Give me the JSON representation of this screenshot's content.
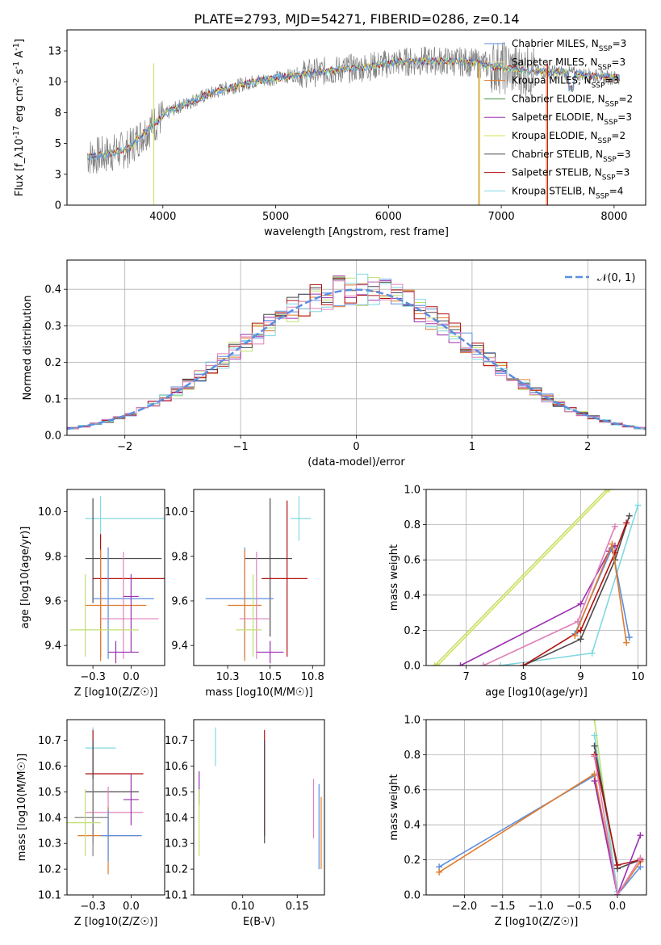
{
  "figure": {
    "title": "PLATE=2793, MJD=54271, FIBERID=0286, z=0.14"
  },
  "colors": {
    "ChabrierMILES": "#5b8ee0",
    "SalpeterMILES": "#e8d8a0",
    "KroupaMILES": "#e07b2a",
    "ChabrierELODIE": "#3f8f3f",
    "SalpeterELODIE": "#9b30b0",
    "KroupaELODIE": "#d4e056",
    "ChabrierSTELIB": "#4a4a4a",
    "SalpeterSTELIB": "#b01010",
    "KroupaSTELIB": "#80d8e0",
    "pink": "#e080b8",
    "lime": "#c0e070",
    "gray": "#808080"
  },
  "chart_data": [
    {
      "id": "spectrum",
      "type": "line",
      "xlabel": "wavelength [Angstrom, rest frame]",
      "ylabel": "Flux [f_λ10^-17 erg cm^-2 s^-1 A^-1]",
      "xlim": [
        3150,
        8280
      ],
      "ylim": [
        0,
        14.2
      ],
      "xticks": [
        4000,
        5000,
        6000,
        7000,
        8000
      ],
      "yticks": [
        0.0,
        2.5,
        5.0,
        7.5,
        10.0,
        12.5
      ],
      "legend": [
        {
          "label": "Chabrier MILES, N_SSP=3",
          "color": "ChabrierMILES"
        },
        {
          "label": "Salpeter MILES, N_SSP=3",
          "color": "SalpeterMILES"
        },
        {
          "label": "Kroupa MILES, N_SSP=3",
          "color": "KroupaMILES"
        },
        {
          "label": "Chabrier ELODIE, N_SSP=2",
          "color": "ChabrierELODIE"
        },
        {
          "label": "Salpeter ELODIE, N_SSP=3",
          "color": "SalpeterELODIE"
        },
        {
          "label": "Kroupa ELODIE, N_SSP=2",
          "color": "KroupaELODIE"
        },
        {
          "label": "Chabrier STELIB, N_SSP=3",
          "color": "ChabrierSTELIB"
        },
        {
          "label": "Salpeter STELIB, N_SSP=3",
          "color": "SalpeterSTELIB"
        },
        {
          "label": "Kroupa STELIB, N_SSP=4",
          "color": "KroupaSTELIB"
        }
      ],
      "continuum": [
        [
          3330,
          3.9
        ],
        [
          3500,
          4.1
        ],
        [
          3700,
          4.6
        ],
        [
          3800,
          5.6
        ],
        [
          3900,
          6.4
        ],
        [
          4000,
          7.2
        ],
        [
          4100,
          7.8
        ],
        [
          4300,
          8.6
        ],
        [
          4500,
          9.3
        ],
        [
          4800,
          10.0
        ],
        [
          5000,
          10.3
        ],
        [
          5200,
          10.6
        ],
        [
          5500,
          10.9
        ],
        [
          5800,
          11.2
        ],
        [
          6100,
          11.6
        ],
        [
          6400,
          11.7
        ],
        [
          6700,
          11.6
        ],
        [
          6900,
          11.3
        ],
        [
          7100,
          11.0
        ],
        [
          7300,
          10.8
        ],
        [
          7500,
          10.8
        ],
        [
          7700,
          10.6
        ],
        [
          7900,
          10.4
        ],
        [
          8050,
          10.3
        ]
      ]
    },
    {
      "id": "residuals",
      "type": "line",
      "xlabel": "(data-model)/error",
      "ylabel": "Normed distribution",
      "xlim": [
        -2.5,
        2.5
      ],
      "ylim": [
        0,
        0.48
      ],
      "xticks": [
        -2,
        -1,
        0,
        1,
        2
      ],
      "yticks": [
        0.0,
        0.1,
        0.2,
        0.3,
        0.4
      ],
      "legend": [
        {
          "label": "𝒩(0, 1)",
          "color": "ChabrierMILES"
        }
      ]
    },
    {
      "id": "age-vs-Z",
      "type": "scatter",
      "xlabel": "Z [log10(Z/Z☉)]",
      "ylabel": "age  [log10(age/yr)]",
      "xlim": [
        -0.42,
        0.22
      ],
      "ylim": [
        9.31,
        10.1
      ],
      "xticks": [
        -0.25,
        0.0
      ],
      "yticks": [
        9.4,
        9.6,
        9.8,
        10.0
      ],
      "points": [
        {
          "x": -0.2,
          "y": 9.97,
          "xerr": [
            0.1,
            0.5
          ],
          "yerr": [
            0.1,
            0.1
          ],
          "color": "KroupaSTELIB"
        },
        {
          "x": -0.25,
          "y": 9.79,
          "xerr": [
            0.05,
            0.45
          ],
          "yerr": [
            0.2,
            0.27
          ],
          "color": "ChabrierSTELIB"
        },
        {
          "x": -0.2,
          "y": 9.7,
          "xerr": [
            0.05,
            0.45
          ],
          "yerr": [
            0.35,
            0.2
          ],
          "color": "SalpeterSTELIB"
        },
        {
          "x": -0.15,
          "y": 9.61,
          "xerr": [
            0.1,
            0.3
          ],
          "yerr": [
            0.27,
            0.23
          ],
          "color": "ChabrierMILES"
        },
        {
          "x": -0.2,
          "y": 9.58,
          "xerr": [
            0.1,
            0.3
          ],
          "yerr": [
            0.25,
            0.25
          ],
          "color": "KroupaMILES"
        },
        {
          "x": -0.05,
          "y": 9.52,
          "xerr": [
            0.15,
            0.23
          ],
          "yerr": [
            0.18,
            0.3
          ],
          "color": "pink"
        },
        {
          "x": 0.0,
          "y": 9.62,
          "xerr": [
            0.05,
            0.05
          ],
          "yerr": [
            0.25,
            0.1
          ],
          "color": "SalpeterELODIE"
        },
        {
          "x": -0.1,
          "y": 9.37,
          "xerr": [
            0.05,
            0.15
          ],
          "yerr": [
            0.05,
            0.05
          ],
          "color": "SalpeterELODIE"
        },
        {
          "x": -0.3,
          "y": 9.47,
          "xerr": [
            0.1,
            0.35
          ],
          "yerr": [
            0.12,
            0.25
          ],
          "color": "lime"
        }
      ]
    },
    {
      "id": "age-vs-mass",
      "type": "scatter",
      "xlabel": "mass [log10(M/M☉)]",
      "ylabel": "",
      "xlim": [
        10.05,
        10.82
      ],
      "ylim": [
        9.31,
        10.1
      ],
      "xticks": [
        10.25,
        10.5,
        10.75
      ],
      "yticks": [
        9.4,
        9.6,
        9.8,
        10.0
      ],
      "points": [
        {
          "x": 10.67,
          "y": 9.97,
          "xerr": [
            0.05,
            0.07
          ],
          "yerr": [
            0.1,
            0.1
          ],
          "color": "KroupaSTELIB"
        },
        {
          "x": 10.5,
          "y": 9.79,
          "xerr": [
            0.15,
            0.13
          ],
          "yerr": [
            0.35,
            0.27
          ],
          "color": "ChabrierSTELIB"
        },
        {
          "x": 10.6,
          "y": 9.7,
          "xerr": [
            0.15,
            0.12
          ],
          "yerr": [
            0.35,
            0.35
          ],
          "color": "SalpeterSTELIB"
        },
        {
          "x": 10.35,
          "y": 9.61,
          "xerr": [
            0.23,
            0.17
          ],
          "yerr": [
            0.27,
            0.23
          ],
          "color": "ChabrierMILES"
        },
        {
          "x": 10.35,
          "y": 9.58,
          "xerr": [
            0.1,
            0.1
          ],
          "yerr": [
            0.25,
            0.25
          ],
          "color": "KroupaMILES"
        },
        {
          "x": 10.42,
          "y": 9.52,
          "xerr": [
            0.1,
            0.08
          ],
          "yerr": [
            0.18,
            0.3
          ],
          "color": "pink"
        },
        {
          "x": 10.5,
          "y": 9.37,
          "xerr": [
            0.08,
            0.08
          ],
          "yerr": [
            0.05,
            0.05
          ],
          "color": "SalpeterELODIE"
        },
        {
          "x": 10.4,
          "y": 9.47,
          "xerr": [
            0.1,
            0.05
          ],
          "yerr": [
            0.12,
            0.25
          ],
          "color": "lime"
        }
      ]
    },
    {
      "id": "mass-weight-vs-age",
      "type": "line",
      "xlabel": "age  [log10(age/yr)]",
      "ylabel": "mass weight",
      "xlim": [
        6.3,
        10.15
      ],
      "ylim": [
        0,
        1.0
      ],
      "xticks": [
        7,
        8,
        9,
        10
      ],
      "yticks": [
        0.0,
        0.2,
        0.4,
        0.6,
        0.8,
        1.0
      ],
      "series": [
        {
          "color": "lime",
          "x": [
            6.45,
            9.45
          ],
          "y": [
            0.0,
            1.0
          ]
        },
        {
          "color": "KroupaELODIE",
          "x": [
            6.5,
            9.5
          ],
          "y": [
            0.0,
            1.0
          ]
        },
        {
          "color": "SalpeterELODIE",
          "x": [
            6.9,
            9.0,
            9.5,
            9.6
          ],
          "y": [
            0.0,
            0.35,
            0.65,
            0.68
          ]
        },
        {
          "color": "pink",
          "x": [
            7.3,
            8.95,
            9.6
          ],
          "y": [
            0.0,
            0.25,
            0.79
          ]
        },
        {
          "color": "KroupaSTELIB",
          "x": [
            7.6,
            9.2,
            10.0
          ],
          "y": [
            0.0,
            0.07,
            0.91
          ]
        },
        {
          "color": "ChabrierSTELIB",
          "x": [
            8.0,
            9.0,
            9.6,
            9.85
          ],
          "y": [
            0.0,
            0.15,
            0.6,
            0.85
          ]
        },
        {
          "color": "SalpeterSTELIB",
          "x": [
            8.0,
            9.0,
            9.6,
            9.8
          ],
          "y": [
            0.0,
            0.2,
            0.64,
            0.81
          ]
        },
        {
          "color": "ChabrierMILES",
          "x": [
            8.9,
            9.55,
            9.85
          ],
          "y": [
            0.18,
            0.67,
            0.16
          ]
        },
        {
          "color": "KroupaMILES",
          "x": [
            8.9,
            9.55,
            9.8
          ],
          "y": [
            0.17,
            0.69,
            0.13
          ]
        }
      ]
    },
    {
      "id": "mass-vs-Z",
      "type": "scatter",
      "xlabel": "Z [log10(Z/Z☉)]",
      "ylabel": "mass [log10(M/M☉)]",
      "xlim": [
        -0.42,
        0.22
      ],
      "ylim": [
        10.1,
        10.78
      ],
      "xticks": [
        -0.25,
        0.0
      ],
      "yticks": [
        10.1,
        10.2,
        10.3,
        10.4,
        10.5,
        10.6,
        10.7
      ],
      "points": [
        {
          "x": -0.25,
          "y": 10.67,
          "xerr": [
            0.05,
            0.15
          ],
          "yerr": [
            0.07,
            0.08
          ],
          "color": "KroupaSTELIB"
        },
        {
          "x": -0.25,
          "y": 10.57,
          "xerr": [
            0.05,
            0.33
          ],
          "yerr": [
            0.24,
            0.17
          ],
          "color": "SalpeterSTELIB"
        },
        {
          "x": -0.25,
          "y": 10.5,
          "xerr": [
            0.05,
            0.3
          ],
          "yerr": [
            0.2,
            0.2
          ],
          "color": "ChabrierSTELIB"
        },
        {
          "x": -0.15,
          "y": 10.42,
          "xerr": [
            0.15,
            0.23
          ],
          "yerr": [
            0.1,
            0.1
          ],
          "color": "pink"
        },
        {
          "x": -0.25,
          "y": 10.4,
          "xerr": [
            0.12,
            0.1
          ],
          "yerr": [
            0.15,
            0.15
          ],
          "color": "gray"
        },
        {
          "x": 0.0,
          "y": 10.47,
          "xerr": [
            0.05,
            0.05
          ],
          "yerr": [
            0.1,
            0.1
          ],
          "color": "SalpeterELODIE"
        },
        {
          "x": -0.15,
          "y": 10.33,
          "xerr": [
            0.2,
            0.2
          ],
          "yerr": [
            0.15,
            0.11
          ],
          "color": "KroupaMILES"
        },
        {
          "x": -0.15,
          "y": 10.33,
          "xerr": [
            0.05,
            0.22
          ],
          "yerr": [
            0.1,
            0.1
          ],
          "color": "ChabrierMILES"
        },
        {
          "x": -0.3,
          "y": 10.38,
          "xerr": [
            0.12,
            0.1
          ],
          "yerr": [
            0.13,
            0.13
          ],
          "color": "lime"
        }
      ]
    },
    {
      "id": "mass-vs-EBV",
      "type": "scatter",
      "xlabel": "E(B-V)",
      "ylabel": "",
      "xlim": [
        0.055,
        0.175
      ],
      "ylim": [
        10.1,
        10.78
      ],
      "xticks": [
        0.1,
        0.15
      ],
      "yticks": [
        10.1,
        10.2,
        10.3,
        10.4,
        10.5,
        10.6,
        10.7
      ],
      "points": [
        {
          "x": 0.075,
          "y": 10.67,
          "yerr": [
            0.07,
            0.08
          ],
          "color": "KroupaSTELIB"
        },
        {
          "x": 0.12,
          "y": 10.57,
          "yerr": [
            0.24,
            0.17
          ],
          "color": "SalpeterSTELIB"
        },
        {
          "x": 0.12,
          "y": 10.5,
          "yerr": [
            0.2,
            0.2
          ],
          "color": "ChabrierSTELIB"
        },
        {
          "x": 0.165,
          "y": 10.42,
          "yerr": [
            0.1,
            0.13
          ],
          "color": "pink"
        },
        {
          "x": 0.17,
          "y": 10.33,
          "yerr": [
            0.13,
            0.2
          ],
          "color": "ChabrierMILES"
        },
        {
          "x": 0.172,
          "y": 10.33,
          "yerr": [
            0.13,
            0.15
          ],
          "color": "KroupaMILES"
        },
        {
          "x": 0.06,
          "y": 10.5,
          "yerr": [
            0.05,
            0.08
          ],
          "color": "SalpeterELODIE"
        },
        {
          "x": 0.06,
          "y": 10.38,
          "yerr": [
            0.13,
            0.13
          ],
          "color": "lime"
        }
      ]
    },
    {
      "id": "mass-weight-vs-Z",
      "type": "line",
      "xlabel": "Z [log10(Z/Z☉)]",
      "ylabel": "mass weight",
      "xlim": [
        -2.5,
        0.38
      ],
      "ylim": [
        0,
        1.0
      ],
      "xticks": [
        -2.0,
        -1.5,
        -1.0,
        -0.5,
        0.0
      ],
      "yticks": [
        0.0,
        0.2,
        0.4,
        0.6,
        0.8,
        1.0
      ],
      "series": [
        {
          "color": "ChabrierMILES",
          "x": [
            -2.33,
            -0.3,
            0.0,
            0.3
          ],
          "y": [
            0.16,
            0.68,
            0.0,
            0.16
          ]
        },
        {
          "color": "KroupaMILES",
          "x": [
            -2.33,
            -0.3,
            0.0,
            0.3
          ],
          "y": [
            0.13,
            0.69,
            0.0,
            0.19
          ]
        },
        {
          "color": "lime",
          "x": [
            -0.3,
            0.0
          ],
          "y": [
            1.0,
            0.0
          ]
        },
        {
          "color": "KroupaSTELIB",
          "x": [
            -0.3,
            0.0
          ],
          "y": [
            0.91,
            0.02
          ]
        },
        {
          "color": "ChabrierSTELIB",
          "x": [
            -0.3,
            0.0,
            0.3
          ],
          "y": [
            0.85,
            0.15,
            0.2
          ]
        },
        {
          "color": "SalpeterSTELIB",
          "x": [
            -0.3,
            0.0,
            0.3
          ],
          "y": [
            0.8,
            0.17,
            0.2
          ]
        },
        {
          "color": "SalpeterELODIE",
          "x": [
            -0.3,
            0.0,
            0.3
          ],
          "y": [
            0.65,
            0.0,
            0.34
          ]
        },
        {
          "color": "pink",
          "x": [
            -0.3,
            0.0,
            0.3
          ],
          "y": [
            0.79,
            0.0,
            0.21
          ]
        }
      ]
    }
  ]
}
